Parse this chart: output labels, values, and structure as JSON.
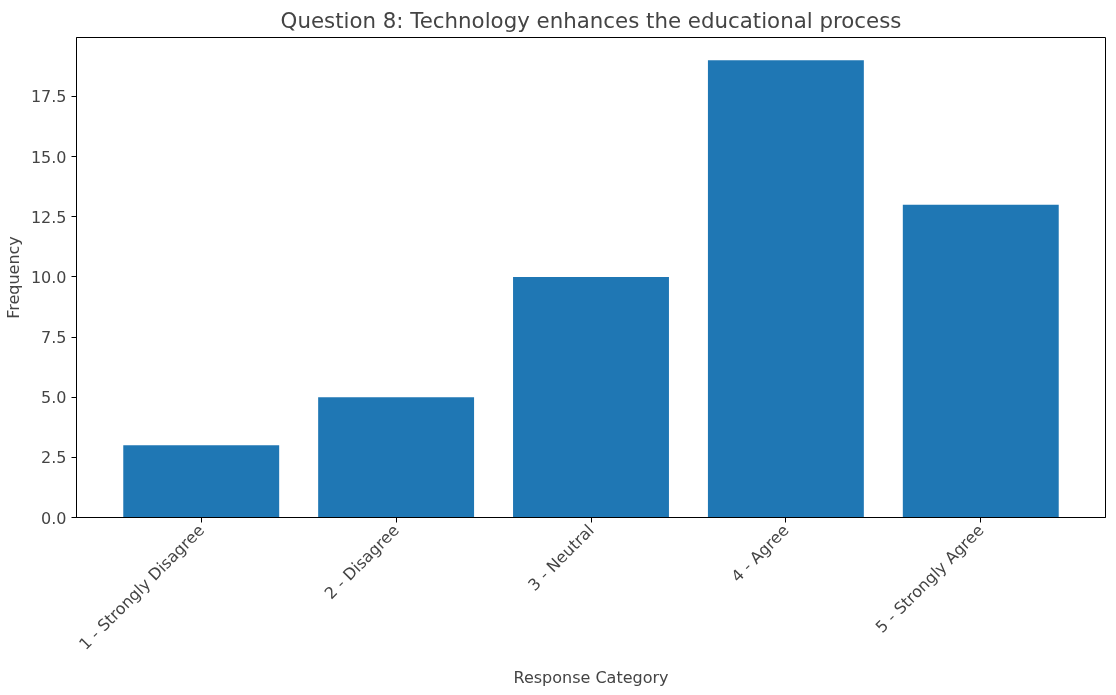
{
  "chart_data": {
    "type": "bar",
    "title": "Question 8: Technology enhances the educational process",
    "xlabel": "Response Category",
    "ylabel": "Frequency",
    "categories": [
      "1 - Strongly Disagree",
      "2 - Disagree",
      "3 - Neutral",
      "4 - Agree",
      "5 - Strongly Agree"
    ],
    "values": [
      3,
      5,
      10,
      19,
      13
    ],
    "color": "#1f77b4",
    "ylim": [
      0,
      19.95
    ],
    "yticks": [
      {
        "value": 0,
        "label": "0.0"
      },
      {
        "value": 2.5,
        "label": "2.5"
      },
      {
        "value": 5,
        "label": "5.0"
      },
      {
        "value": 7.5,
        "label": "7.5"
      },
      {
        "value": 10,
        "label": "10.0"
      },
      {
        "value": 12.5,
        "label": "12.5"
      },
      {
        "value": 15,
        "label": "15.0"
      },
      {
        "value": 17.5,
        "label": "17.5"
      }
    ],
    "grid": false
  }
}
